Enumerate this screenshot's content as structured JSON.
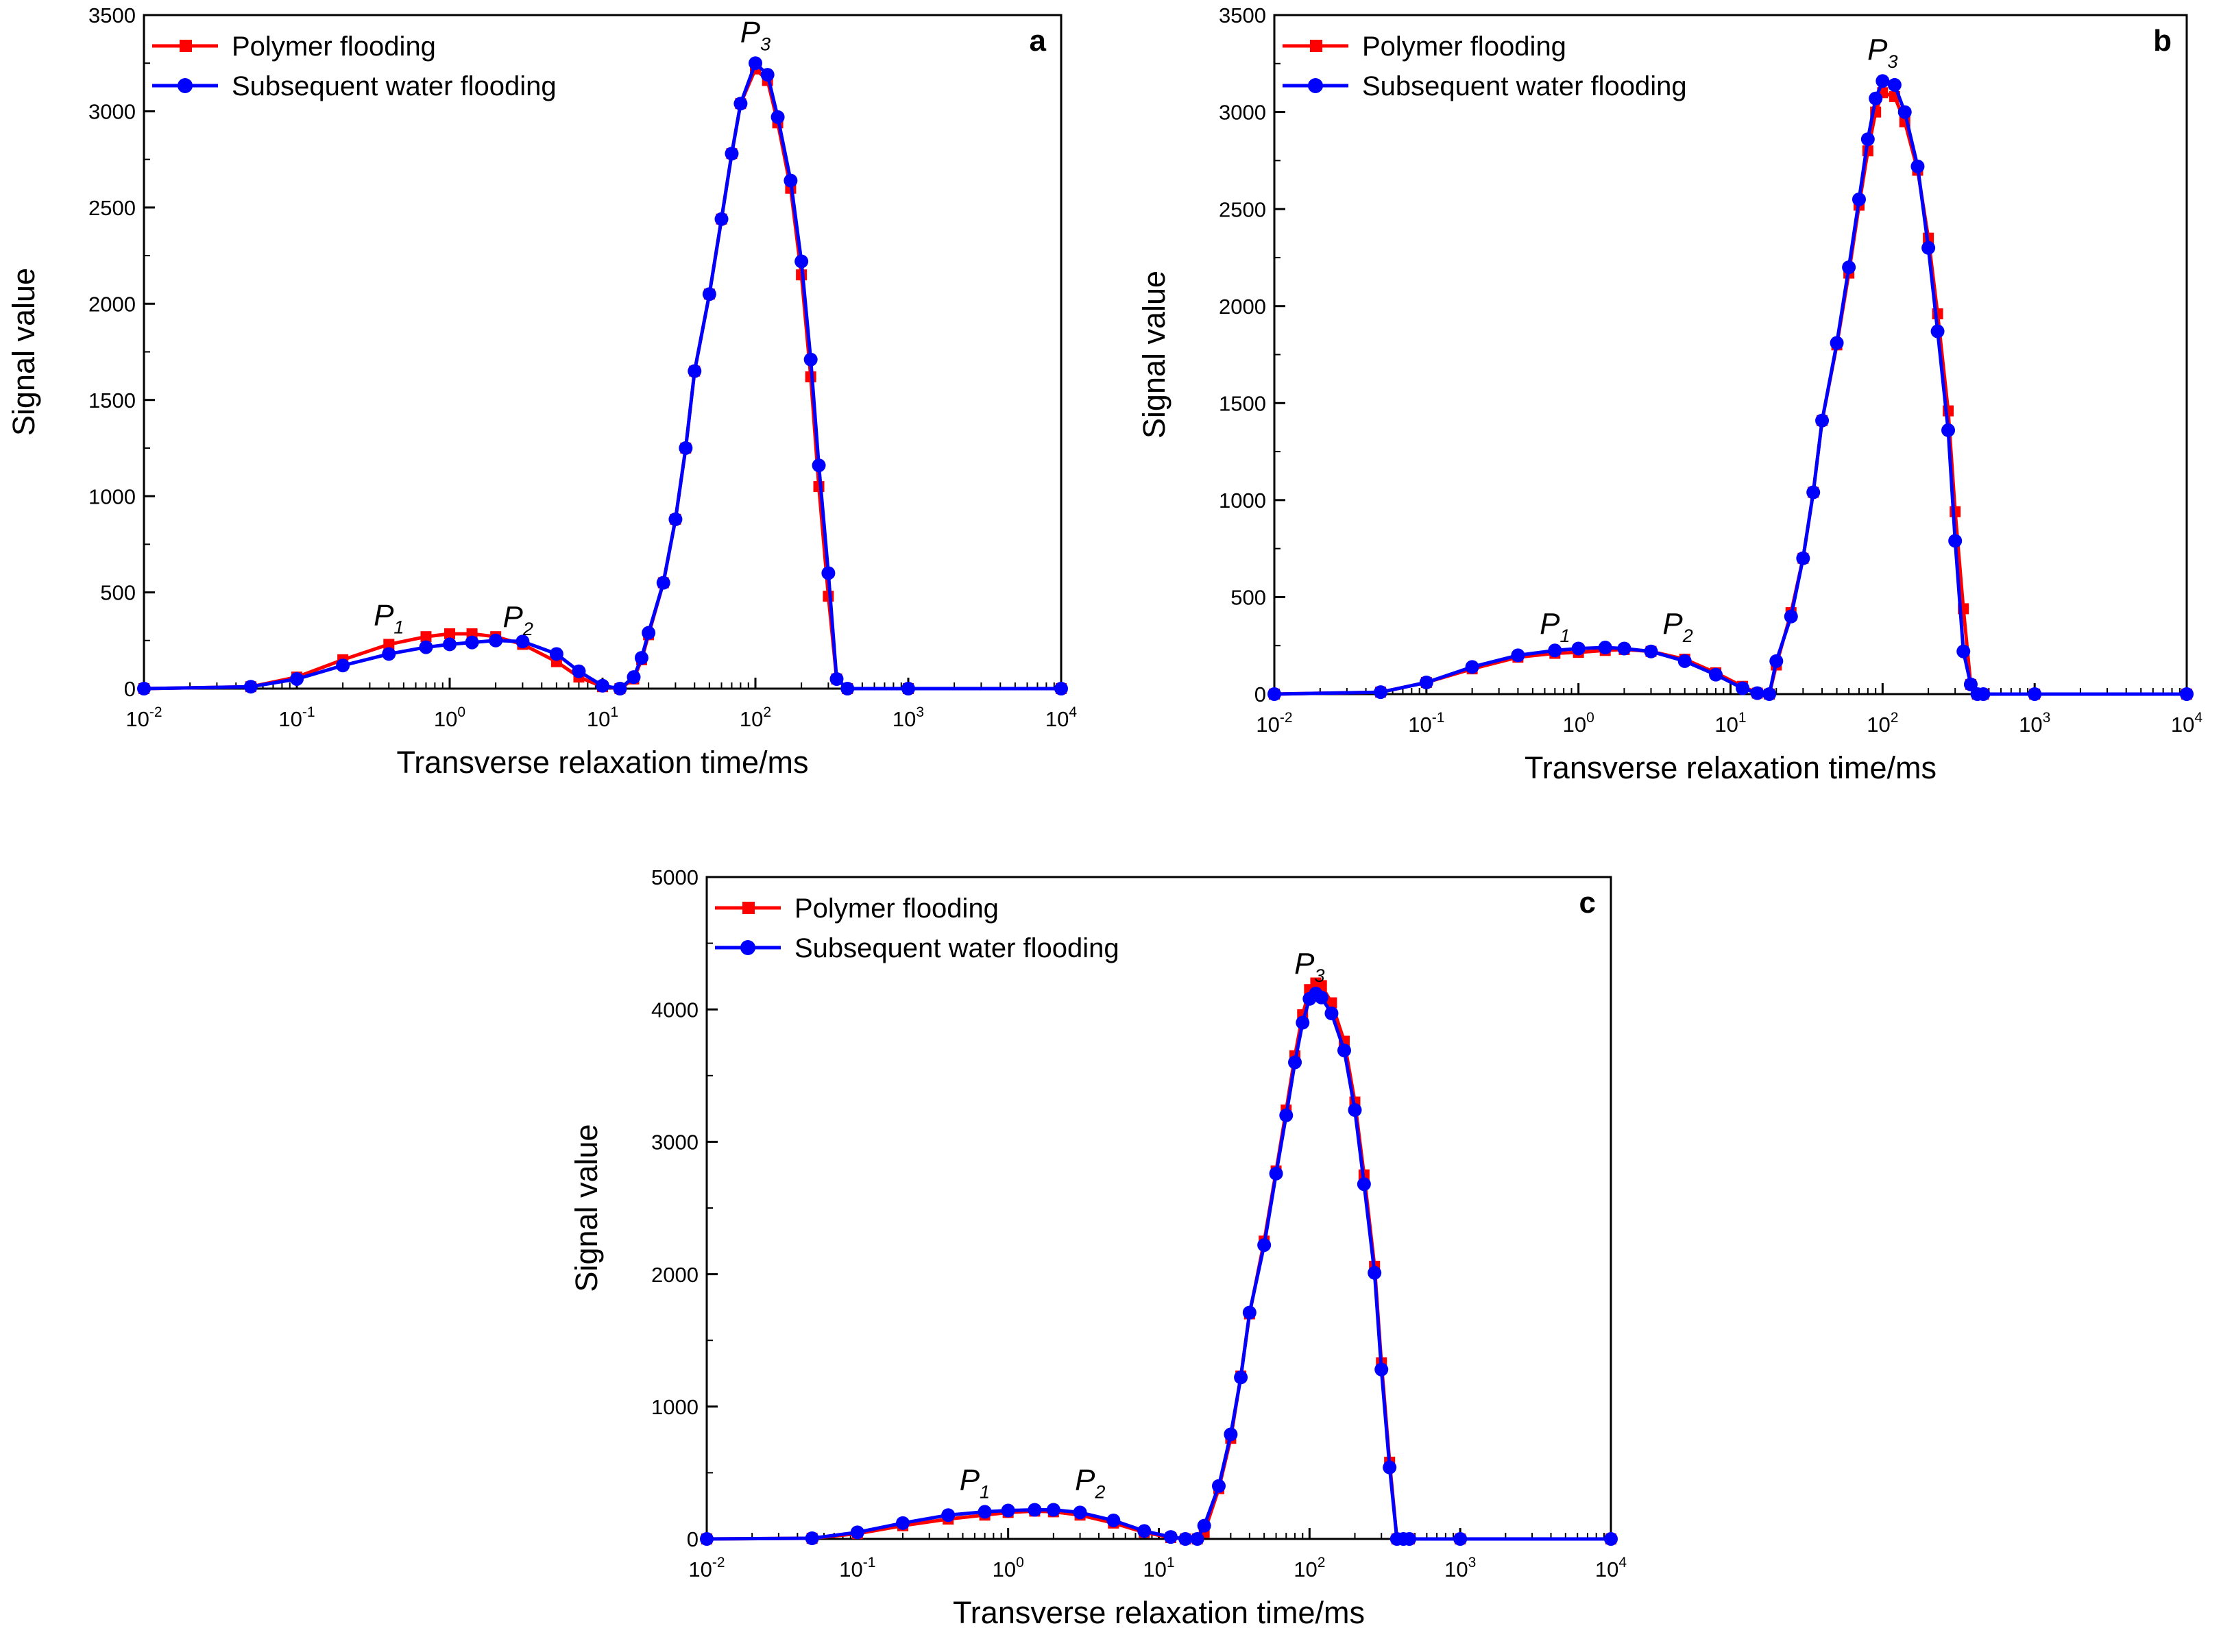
{
  "chart_data": [
    {
      "type": "line",
      "panel": "a",
      "xscale": "log",
      "xlim": [
        0.01,
        10000
      ],
      "ylim": [
        0,
        3500
      ],
      "xlabel": "Transverse relaxation time/ms",
      "ylabel": "Signal value",
      "xticks": [
        0.01,
        0.1,
        1,
        10,
        100,
        1000,
        10000
      ],
      "xtick_labels": [
        [
          "10",
          "-2"
        ],
        [
          "10",
          "-1"
        ],
        [
          "10",
          "0"
        ],
        [
          "10",
          "1"
        ],
        [
          "10",
          "2"
        ],
        [
          "10",
          "3"
        ],
        [
          "10",
          "4"
        ]
      ],
      "yticks": [
        0,
        500,
        1000,
        1500,
        2000,
        2500,
        3000,
        3500
      ],
      "ytick_labels": [
        "0",
        "500",
        "1000",
        "1500",
        "2000",
        "2500",
        "3000",
        "3500"
      ],
      "legend": [
        "Polymer flooding",
        "Subsequent water flooding"
      ],
      "legend_position": "top-left",
      "peaks": [
        {
          "label": "P",
          "sub": "1",
          "x": 0.4,
          "y": 330
        },
        {
          "label": "P",
          "sub": "2",
          "x": 2.8,
          "y": 320
        },
        {
          "label": "P",
          "sub": "3",
          "x": 100,
          "y": 3360
        }
      ],
      "series": [
        {
          "name": "Polymer flooding",
          "color": "#ff0000",
          "marker": "square",
          "x": [
            0.01,
            0.05,
            0.1,
            0.2,
            0.4,
            0.7,
            1.0,
            1.4,
            2.0,
            3.0,
            5.0,
            7.0,
            10,
            13,
            16,
            18,
            20,
            25,
            30,
            35,
            40,
            50,
            60,
            70,
            80,
            100,
            120,
            140,
            170,
            200,
            230,
            260,
            300,
            340,
            400,
            1000,
            10000
          ],
          "y": [
            0,
            10,
            60,
            150,
            230,
            270,
            285,
            285,
            270,
            230,
            140,
            60,
            10,
            0,
            50,
            150,
            280,
            550,
            880,
            1250,
            1650,
            2050,
            2440,
            2780,
            3040,
            3220,
            3160,
            2940,
            2600,
            2150,
            1620,
            1050,
            480,
            50,
            0,
            0,
            0
          ]
        },
        {
          "name": "Subsequent water flooding",
          "color": "#0000ff",
          "marker": "circle",
          "x": [
            0.01,
            0.05,
            0.1,
            0.2,
            0.4,
            0.7,
            1.0,
            1.4,
            2.0,
            3.0,
            5.0,
            7.0,
            10,
            13,
            16,
            18,
            20,
            25,
            30,
            35,
            40,
            50,
            60,
            70,
            80,
            100,
            120,
            140,
            170,
            200,
            230,
            260,
            300,
            340,
            400,
            1000,
            10000
          ],
          "y": [
            0,
            10,
            50,
            120,
            180,
            215,
            230,
            240,
            250,
            245,
            180,
            90,
            15,
            0,
            60,
            160,
            290,
            550,
            880,
            1250,
            1650,
            2050,
            2440,
            2780,
            3040,
            3250,
            3190,
            2970,
            2640,
            2220,
            1710,
            1160,
            600,
            50,
            0,
            0,
            0
          ]
        }
      ]
    },
    {
      "type": "line",
      "panel": "b",
      "xscale": "log",
      "xlim": [
        0.01,
        10000
      ],
      "ylim": [
        0,
        3500
      ],
      "xlabel": "Transverse relaxation time/ms",
      "ylabel": "Signal value",
      "xticks": [
        0.01,
        0.1,
        1,
        10,
        100,
        1000,
        10000
      ],
      "xtick_labels": [
        [
          "10",
          "-2"
        ],
        [
          "10",
          "-1"
        ],
        [
          "10",
          "0"
        ],
        [
          "10",
          "1"
        ],
        [
          "10",
          "2"
        ],
        [
          "10",
          "3"
        ],
        [
          "10",
          "4"
        ]
      ],
      "yticks": [
        0,
        500,
        1000,
        1500,
        2000,
        2500,
        3000,
        3500
      ],
      "ytick_labels": [
        "0",
        "500",
        "1000",
        "1500",
        "2000",
        "2500",
        "3000",
        "3500"
      ],
      "legend": [
        "Polymer flooding",
        "Subsequent water flooding"
      ],
      "legend_position": "top-left",
      "peaks": [
        {
          "label": "P",
          "sub": "1",
          "x": 0.7,
          "y": 310
        },
        {
          "label": "P",
          "sub": "2",
          "x": 4.5,
          "y": 310
        },
        {
          "label": "P",
          "sub": "3",
          "x": 100,
          "y": 3270
        }
      ],
      "series": [
        {
          "name": "Polymer flooding",
          "color": "#ff0000",
          "marker": "square",
          "x": [
            0.01,
            0.05,
            0.1,
            0.2,
            0.4,
            0.7,
            1.0,
            1.5,
            2.0,
            3.0,
            5.0,
            8.0,
            12,
            15,
            18,
            20,
            25,
            30,
            35,
            40,
            50,
            60,
            70,
            80,
            90,
            100,
            120,
            140,
            170,
            200,
            230,
            270,
            300,
            340,
            380,
            420,
            460,
            1000,
            10000
          ],
          "y": [
            0,
            10,
            60,
            130,
            190,
            210,
            215,
            225,
            230,
            220,
            180,
            110,
            40,
            5,
            0,
            150,
            420,
            700,
            1040,
            1410,
            1800,
            2170,
            2520,
            2800,
            3000,
            3100,
            3080,
            2950,
            2700,
            2350,
            1960,
            1460,
            940,
            440,
            50,
            0,
            0,
            0,
            0
          ]
        },
        {
          "name": "Subsequent water flooding",
          "color": "#0000ff",
          "marker": "circle",
          "x": [
            0.01,
            0.05,
            0.1,
            0.2,
            0.4,
            0.7,
            1.0,
            1.5,
            2.0,
            3.0,
            5.0,
            8.0,
            12,
            15,
            18,
            20,
            25,
            30,
            35,
            40,
            50,
            60,
            70,
            80,
            90,
            100,
            120,
            140,
            170,
            200,
            230,
            270,
            300,
            340,
            380,
            420,
            460,
            1000,
            10000
          ],
          "y": [
            0,
            10,
            60,
            140,
            200,
            225,
            235,
            240,
            235,
            220,
            170,
            100,
            30,
            5,
            0,
            170,
            400,
            700,
            1040,
            1410,
            1810,
            2200,
            2550,
            2860,
            3070,
            3160,
            3140,
            3000,
            2720,
            2300,
            1870,
            1360,
            790,
            220,
            50,
            0,
            0,
            0,
            0
          ]
        }
      ]
    },
    {
      "type": "line",
      "panel": "c",
      "xscale": "log",
      "xlim": [
        0.01,
        10000
      ],
      "ylim": [
        0,
        5000
      ],
      "xlabel": "Transverse relaxation time/ms",
      "ylabel": "Signal value",
      "xticks": [
        0.01,
        0.1,
        1,
        10,
        100,
        1000,
        10000
      ],
      "xtick_labels": [
        [
          "10",
          "-2"
        ],
        [
          "10",
          "-1"
        ],
        [
          "10",
          "0"
        ],
        [
          "10",
          "1"
        ],
        [
          "10",
          "2"
        ],
        [
          "10",
          "3"
        ],
        [
          "10",
          "4"
        ]
      ],
      "yticks": [
        0,
        1000,
        2000,
        3000,
        4000,
        5000
      ],
      "ytick_labels": [
        "0",
        "1000",
        "2000",
        "3000",
        "4000",
        "5000"
      ],
      "legend": [
        "Polymer flooding",
        "Subsequent water flooding"
      ],
      "legend_position": "top-left",
      "peaks": [
        {
          "label": "P",
          "sub": "1",
          "x": 0.6,
          "y": 370
        },
        {
          "label": "P",
          "sub": "2",
          "x": 3.5,
          "y": 370
        },
        {
          "label": "P",
          "sub": "3",
          "x": 100,
          "y": 4270
        }
      ],
      "series": [
        {
          "name": "Polymer flooding",
          "color": "#ff0000",
          "marker": "square",
          "x": [
            0.01,
            0.05,
            0.1,
            0.2,
            0.4,
            0.7,
            1.0,
            1.5,
            2.0,
            3.0,
            5.0,
            8.0,
            12,
            15,
            18,
            20,
            25,
            30,
            35,
            40,
            50,
            60,
            70,
            80,
            90,
            100,
            110,
            120,
            140,
            170,
            200,
            230,
            270,
            300,
            340,
            380,
            420,
            460,
            1000,
            10000
          ],
          "y": [
            0,
            5,
            40,
            100,
            150,
            180,
            200,
            210,
            205,
            180,
            120,
            50,
            10,
            0,
            0,
            50,
            380,
            760,
            1230,
            1700,
            2250,
            2780,
            3240,
            3650,
            3960,
            4150,
            4200,
            4180,
            4050,
            3760,
            3300,
            2750,
            2060,
            1330,
            580,
            0,
            0,
            0,
            0,
            0
          ]
        },
        {
          "name": "Subsequent water flooding",
          "color": "#0000ff",
          "marker": "circle",
          "x": [
            0.01,
            0.05,
            0.1,
            0.2,
            0.4,
            0.7,
            1.0,
            1.5,
            2.0,
            3.0,
            5.0,
            8.0,
            12,
            15,
            18,
            20,
            25,
            30,
            35,
            40,
            50,
            60,
            70,
            80,
            90,
            100,
            110,
            120,
            140,
            170,
            200,
            230,
            270,
            300,
            340,
            380,
            420,
            460,
            1000,
            10000
          ],
          "y": [
            0,
            5,
            50,
            120,
            180,
            205,
            215,
            220,
            220,
            200,
            140,
            60,
            15,
            0,
            0,
            100,
            400,
            790,
            1220,
            1710,
            2220,
            2760,
            3200,
            3600,
            3900,
            4080,
            4120,
            4090,
            3970,
            3690,
            3240,
            2680,
            2010,
            1280,
            540,
            0,
            0,
            0,
            0,
            0
          ]
        }
      ]
    }
  ]
}
